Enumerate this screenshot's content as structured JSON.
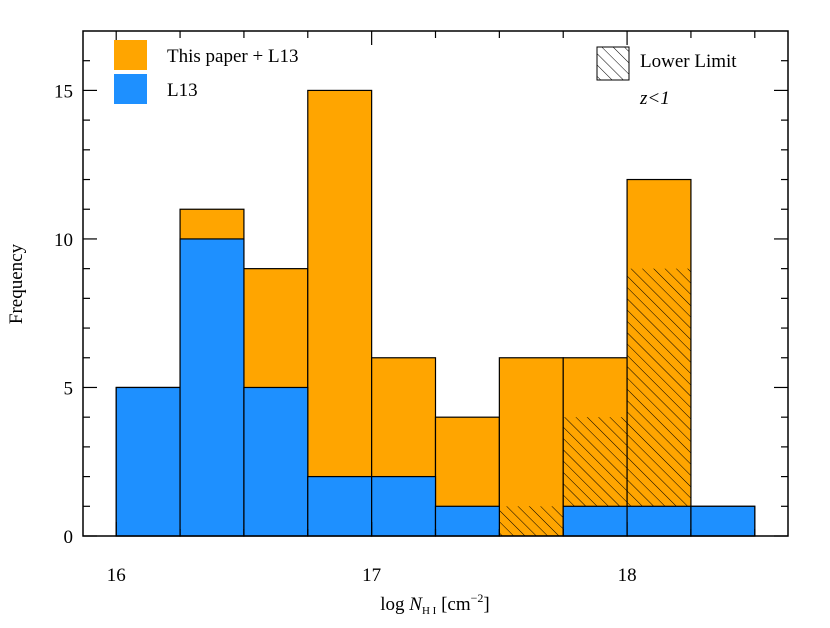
{
  "chart_data": {
    "type": "histogram",
    "xlabel": [
      "log ",
      "N",
      "H I",
      " [cm",
      "−2",
      "]"
    ],
    "ylabel": "Frequency",
    "annotation": "z<1",
    "bins": [
      16.0,
      16.25,
      16.5,
      16.75,
      17.0,
      17.25,
      17.5,
      17.75,
      18.0,
      18.25,
      18.5
    ],
    "series": [
      {
        "name": "This paper + L13",
        "color": "#FFA500",
        "values": [
          5,
          11,
          9,
          15,
          6,
          4,
          6,
          6,
          12,
          1
        ]
      },
      {
        "name": "L13",
        "color": "#1E90FF",
        "values": [
          5,
          10,
          5,
          2,
          2,
          1,
          0,
          1,
          1,
          1
        ]
      }
    ],
    "lower_limit": {
      "name": "Lower Limit",
      "values": [
        0,
        0,
        0,
        0,
        0,
        0,
        1,
        3,
        8,
        0
      ]
    },
    "xlim": [
      15.87,
      18.63
    ],
    "ylim": [
      0,
      17
    ],
    "xticks": [
      16,
      17,
      18
    ],
    "yticks": [
      0,
      5,
      10,
      15
    ],
    "xminor": [
      16.25,
      16.5,
      16.75,
      17.25,
      17.5,
      17.75,
      18.25,
      18.5
    ],
    "yminor": [
      1,
      2,
      3,
      4,
      6,
      7,
      8,
      9,
      11,
      12,
      13,
      14,
      16
    ],
    "legend": "upper left"
  }
}
